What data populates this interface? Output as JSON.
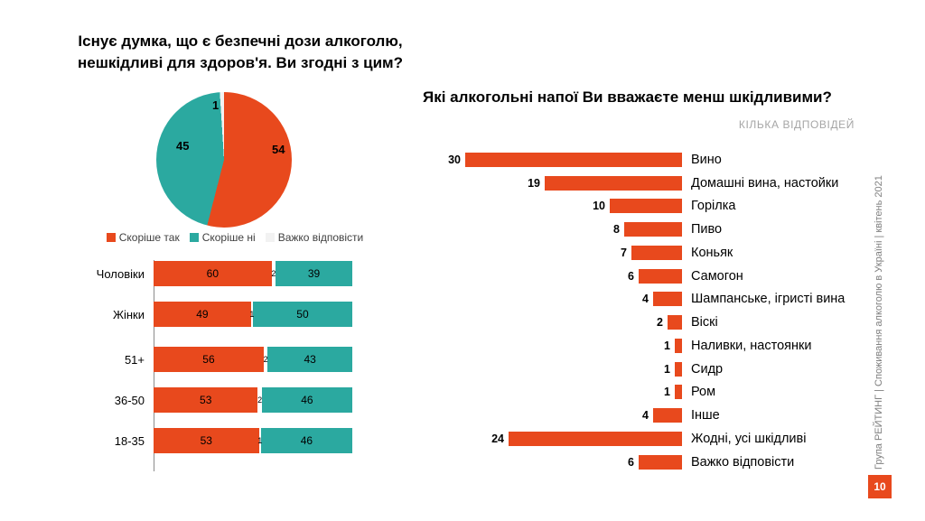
{
  "footer": {
    "source_vertical": "Група РЕЙТИНГ | Споживання алкоголю в Україні | квітень 2021",
    "page_number": "10"
  },
  "colors": {
    "accent_orange": "#E8491D",
    "teal": "#2BA9A0",
    "neutral_light": "#F2F2F2"
  },
  "chart_data": [
    {
      "type": "pie",
      "title": "Існує думка, що є безпечні дози алкоголю, нешкідливі для здоров'я. Ви згодні з цим?",
      "labels": [
        "Скоріше так",
        "Скоріше ні",
        "Важко відповісти"
      ],
      "values": [
        54,
        45,
        1
      ],
      "colors": [
        "#E8491D",
        "#2BA9A0",
        "#F2F2F2"
      ],
      "legend_position": "bottom"
    },
    {
      "type": "bar",
      "subtype": "stacked-horizontal-100",
      "categories": [
        "Чоловіки",
        "Жінки",
        "51+",
        "36-50",
        "18-35"
      ],
      "series": [
        {
          "name": "Скоріше так",
          "color": "#E8491D",
          "values": [
            60,
            49,
            56,
            53,
            53
          ]
        },
        {
          "name": "Важко відповісти",
          "color": "#FFFFFF",
          "values": [
            2,
            1,
            2,
            2,
            1
          ]
        },
        {
          "name": "Скоріше ні",
          "color": "#2BA9A0",
          "values": [
            39,
            50,
            43,
            46,
            46
          ]
        }
      ],
      "group_break_after": "Жінки",
      "xlim": [
        0,
        100
      ]
    },
    {
      "type": "bar",
      "subtype": "horizontal-right-anchored",
      "title": "Які алкогольні напої Ви вважаєте менш шкідливими?",
      "subtitle": "КІЛЬКА ВІДПОВІДЕЙ",
      "categories": [
        "Вино",
        "Домашні вина, настойки",
        "Горілка",
        "Пиво",
        "Коньяк",
        "Самогон",
        "Шампанське, ігристі вина",
        "Віскі",
        "Наливки, настоянки",
        "Сидр",
        "Ром",
        "Інше",
        "Жодні, усі шкідливі",
        "Важко відповісти"
      ],
      "values": [
        30,
        19,
        10,
        8,
        7,
        6,
        4,
        2,
        1,
        1,
        1,
        4,
        24,
        6
      ],
      "bar_color": "#E8491D",
      "xlim": [
        0,
        30
      ]
    }
  ]
}
